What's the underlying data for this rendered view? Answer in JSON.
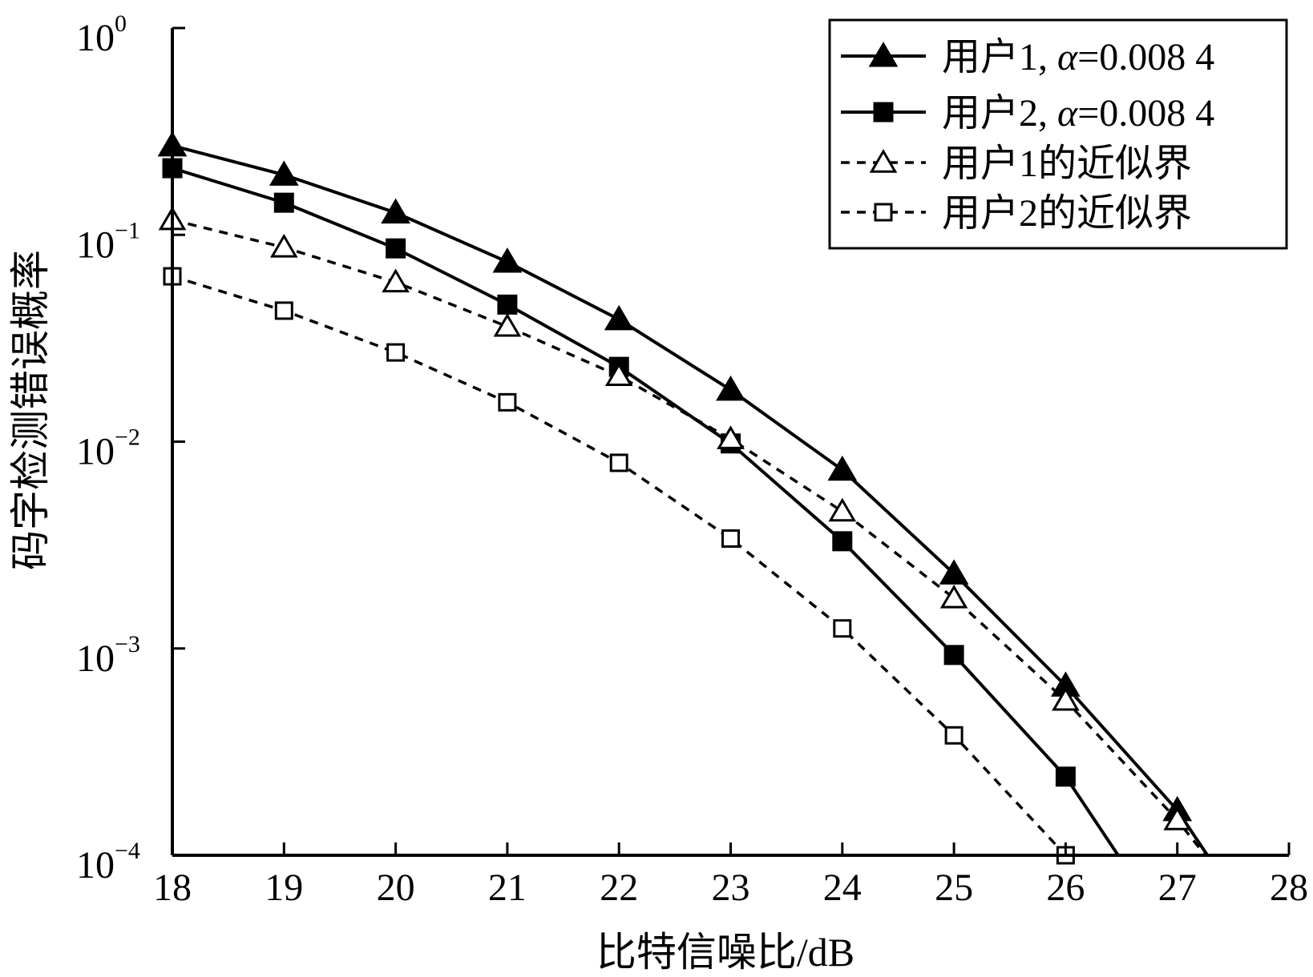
{
  "chart_data": {
    "type": "line",
    "xlabel": "比特信噪比/dB",
    "ylabel": "码字检测错误概率",
    "x_ticks": [
      "18",
      "19",
      "20",
      "21",
      "22",
      "23",
      "24",
      "25",
      "26",
      "27",
      "28"
    ],
    "xlim": [
      18,
      28
    ],
    "y_scale": "log",
    "ylim": [
      0.0001,
      1
    ],
    "y_ticks": [
      {
        "base": "10",
        "exp": "0",
        "value": 1
      },
      {
        "base": "10",
        "exp": "−1",
        "value": 0.1
      },
      {
        "base": "10",
        "exp": "−2",
        "value": 0.01
      },
      {
        "base": "10",
        "exp": "−3",
        "value": 0.001
      },
      {
        "base": "10",
        "exp": "−4",
        "value": 0.0001
      }
    ],
    "grid": false,
    "legend_position": "top-right",
    "series": [
      {
        "name": "用户1, α=0.008 4",
        "name_prefix": "用户1, ",
        "name_alpha": "α",
        "name_suffix": "=0.008 4",
        "line": "solid",
        "marker": "triangle-filled",
        "color": "#000000",
        "x": [
          18,
          19,
          20,
          21,
          22,
          23,
          24,
          25,
          26,
          27,
          27.27
        ],
        "y": [
          0.27,
          0.195,
          0.128,
          0.074,
          0.039,
          0.0178,
          0.0073,
          0.0023,
          0.00066,
          0.000165,
          0.0001
        ],
        "markers_x": [
          18,
          19,
          20,
          21,
          22,
          23,
          24,
          25,
          26,
          27
        ]
      },
      {
        "name": "用户2, α=0.008 4",
        "name_prefix": "用户2, ",
        "name_alpha": "α",
        "name_suffix": "=0.008 4",
        "line": "solid",
        "marker": "square-filled",
        "color": "#000000",
        "x": [
          18,
          19,
          20,
          21,
          22,
          23,
          24,
          25,
          26,
          26.47
        ],
        "y": [
          0.21,
          0.143,
          0.086,
          0.046,
          0.023,
          0.0098,
          0.0033,
          0.00093,
          0.00024,
          0.0001
        ],
        "markers_x": [
          18,
          19,
          20,
          21,
          22,
          23,
          24,
          25,
          26
        ]
      },
      {
        "name": "用户1的近似界",
        "line": "dashed",
        "marker": "triangle-open",
        "color": "#000000",
        "x": [
          18,
          19,
          20,
          21,
          22,
          23,
          24,
          25,
          26,
          27,
          27.25
        ],
        "y": [
          0.118,
          0.087,
          0.059,
          0.036,
          0.0208,
          0.0103,
          0.0046,
          0.00175,
          0.00056,
          0.000148,
          0.0001
        ],
        "markers_x": [
          18,
          19,
          20,
          21,
          22,
          23,
          24,
          25,
          26,
          27
        ]
      },
      {
        "name": "用户2的近似界",
        "line": "dashed",
        "marker": "square-open",
        "color": "#000000",
        "x": [
          18,
          19,
          20,
          21,
          22,
          23,
          24,
          25,
          26
        ],
        "y": [
          0.063,
          0.043,
          0.027,
          0.0155,
          0.0079,
          0.0034,
          0.00125,
          0.00038,
          0.0001
        ],
        "markers_x": [
          18,
          19,
          20,
          21,
          22,
          23,
          24,
          25,
          26
        ]
      }
    ]
  }
}
